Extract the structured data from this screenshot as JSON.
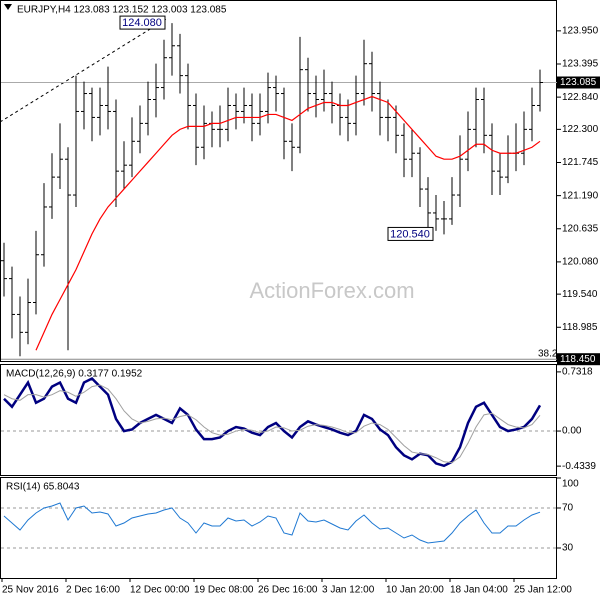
{
  "header": "EURJPY,H4 123.083 123.152 123.003 123.085",
  "watermark": "ActionForex.com",
  "fib_label": "38.2",
  "x_labels": [
    "25 Nov 2016",
    "2 Dec 16:00",
    "12 Dec 00:00",
    "19 Dec 08:00",
    "26 Dec 16:00",
    "3 Jan 12:00",
    "10 Jan 20:00",
    "18 Jan 04:00",
    "25 Jan 12:00"
  ],
  "chart_data": [
    {
      "type": "ohlc",
      "ylim": [
        118.42,
        124.45
      ],
      "yticks": [
        {
          "value": 123.95,
          "label": "123.950"
        },
        123.395,
        {
          "value": 122.84,
          "label": "122.840"
        },
        {
          "value": 122.3,
          "label": "122.300"
        },
        121.745,
        {
          "value": 121.19,
          "label": "121.190"
        },
        120.635,
        {
          "value": 120.08,
          "label": "120.080"
        },
        {
          "value": 119.54,
          "label": "119.540"
        },
        118.985
      ],
      "last_price": 123.085,
      "fib_level": {
        "value": 118.45,
        "label": "118.450"
      },
      "annotations": [
        {
          "value": 124.08,
          "label": "124.080"
        },
        {
          "value": 120.54,
          "label": "120.540"
        }
      ],
      "bar_color": "#000000",
      "open": [
        120.1,
        119.8,
        119.2,
        118.9,
        119.4,
        120.2,
        121.0,
        121.5,
        121.8,
        121.2,
        122.6,
        122.9,
        122.5,
        122.7,
        122.6,
        121.6,
        121.7,
        122.1,
        122.4,
        122.8,
        123.0,
        123.5,
        123.7,
        123.2,
        122.7,
        122.0,
        122.4,
        122.3,
        122.3,
        122.7,
        122.6,
        122.7,
        122.4,
        122.6,
        123.0,
        122.9,
        122.1,
        122.0,
        123.3,
        122.9,
        122.8,
        122.9,
        122.7,
        122.5,
        122.4,
        122.9,
        123.4,
        122.9,
        122.5,
        122.5,
        122.2,
        121.8,
        121.9,
        121.3,
        120.9,
        120.8,
        120.8,
        121.2,
        121.8,
        122.3,
        122.8,
        122.2,
        121.6,
        121.5,
        121.9,
        121.9,
        122.3,
        122.7
      ],
      "high": [
        120.4,
        120.0,
        119.5,
        119.8,
        120.6,
        121.4,
        121.9,
        122.4,
        122.0,
        123.2,
        123.1,
        123.0,
        123.0,
        123.35,
        122.8,
        122.1,
        122.5,
        122.7,
        123.1,
        123.4,
        123.8,
        124.08,
        123.9,
        123.4,
        122.9,
        122.7,
        122.6,
        122.7,
        123.0,
        122.9,
        123.0,
        122.9,
        122.9,
        123.25,
        123.2,
        123.0,
        122.4,
        123.85,
        123.5,
        123.2,
        123.3,
        123.1,
        122.9,
        122.8,
        123.2,
        123.8,
        123.6,
        123.1,
        122.8,
        122.7,
        122.4,
        122.3,
        122.0,
        121.5,
        121.2,
        121.1,
        121.5,
        122.2,
        122.6,
        123.0,
        123.0,
        122.4,
        121.9,
        122.2,
        122.4,
        122.6,
        123.0,
        123.3
      ],
      "low": [
        119.5,
        118.8,
        118.5,
        118.7,
        119.2,
        120.0,
        120.8,
        121.3,
        118.6,
        121.0,
        122.3,
        122.1,
        122.2,
        122.3,
        121.0,
        121.3,
        121.5,
        121.9,
        122.2,
        122.5,
        122.8,
        123.2,
        122.9,
        122.3,
        121.7,
        121.8,
        122.0,
        122.0,
        122.1,
        122.3,
        122.4,
        122.1,
        122.2,
        122.4,
        122.6,
        121.8,
        121.6,
        121.9,
        122.6,
        122.5,
        122.6,
        122.4,
        122.2,
        122.1,
        122.2,
        122.7,
        122.6,
        122.2,
        122.1,
        121.9,
        121.5,
        121.5,
        121.0,
        120.6,
        120.6,
        120.54,
        120.7,
        121.0,
        121.6,
        122.0,
        121.9,
        121.2,
        121.2,
        121.4,
        121.6,
        121.7,
        122.1,
        122.6
      ],
      "close": [
        119.8,
        119.2,
        118.9,
        119.4,
        120.2,
        121.0,
        121.5,
        121.8,
        121.2,
        122.6,
        122.9,
        122.5,
        122.7,
        122.6,
        121.6,
        121.7,
        122.1,
        122.4,
        122.8,
        123.0,
        123.5,
        123.7,
        123.2,
        122.7,
        122.0,
        122.4,
        122.3,
        122.3,
        122.7,
        122.6,
        122.7,
        122.4,
        122.6,
        123.0,
        122.9,
        122.1,
        122.0,
        123.3,
        122.9,
        122.8,
        122.9,
        122.7,
        122.5,
        122.4,
        122.9,
        123.4,
        122.9,
        122.5,
        122.5,
        122.2,
        121.8,
        121.9,
        121.3,
        120.9,
        120.8,
        120.8,
        121.2,
        121.8,
        122.3,
        122.8,
        122.2,
        121.6,
        121.5,
        121.9,
        121.9,
        122.3,
        122.7,
        123.085
      ],
      "series": [
        {
          "color": "#ff0000",
          "values": [
            null,
            null,
            null,
            null,
            118.6,
            118.9,
            119.2,
            119.45,
            119.7,
            119.95,
            120.25,
            120.55,
            120.8,
            121.0,
            121.15,
            121.3,
            121.45,
            121.6,
            121.75,
            121.9,
            122.05,
            122.2,
            122.3,
            122.35,
            122.35,
            122.35,
            122.4,
            122.4,
            122.45,
            122.5,
            122.5,
            122.5,
            122.5,
            122.55,
            122.55,
            122.5,
            122.45,
            122.55,
            122.65,
            122.7,
            122.75,
            122.75,
            122.7,
            122.7,
            122.75,
            122.8,
            122.85,
            122.8,
            122.75,
            122.6,
            122.45,
            122.3,
            122.15,
            122.0,
            121.85,
            121.8,
            121.8,
            121.85,
            121.95,
            122.05,
            122.05,
            121.95,
            121.9,
            121.9,
            121.9,
            121.95,
            122.0,
            122.1
          ]
        }
      ]
    },
    {
      "type": "line",
      "title": "MACD(12,26,9) 0.3177 0.1952",
      "ylim": [
        -0.556,
        0.817
      ],
      "yticks": [
        0.7318,
        {
          "value": 0,
          "label": "0.00"
        },
        -0.4339
      ],
      "series": [
        {
          "color": "#000080",
          "width": 2.5,
          "values": [
            0.4,
            0.3,
            0.45,
            0.6,
            0.35,
            0.4,
            0.55,
            0.6,
            0.4,
            0.35,
            0.6,
            0.65,
            0.55,
            0.45,
            0.15,
            0.0,
            0.02,
            0.1,
            0.15,
            0.2,
            0.15,
            0.1,
            0.28,
            0.2,
            0.02,
            -0.1,
            -0.1,
            -0.08,
            0.0,
            0.05,
            0.03,
            -0.02,
            -0.05,
            0.05,
            0.1,
            0.0,
            -0.08,
            0.05,
            0.12,
            0.08,
            0.05,
            0.02,
            -0.02,
            -0.05,
            0.0,
            0.2,
            0.15,
            0.02,
            -0.05,
            -0.2,
            -0.3,
            -0.35,
            -0.28,
            -0.3,
            -0.4,
            -0.43,
            -0.38,
            -0.2,
            0.1,
            0.3,
            0.35,
            0.2,
            0.05,
            0.0,
            0.02,
            0.05,
            0.15,
            0.3177
          ]
        },
        {
          "color": "#a0a0a0",
          "width": 1,
          "values": [
            0.45,
            0.4,
            0.38,
            0.45,
            0.45,
            0.42,
            0.45,
            0.5,
            0.48,
            0.43,
            0.48,
            0.55,
            0.57,
            0.52,
            0.4,
            0.25,
            0.15,
            0.1,
            0.12,
            0.15,
            0.16,
            0.14,
            0.18,
            0.2,
            0.14,
            0.05,
            -0.02,
            -0.05,
            -0.04,
            0.0,
            0.02,
            0.01,
            -0.02,
            0.0,
            0.05,
            0.04,
            0.0,
            0.01,
            0.06,
            0.08,
            0.07,
            0.05,
            0.02,
            -0.02,
            -0.02,
            0.06,
            0.1,
            0.08,
            0.02,
            -0.08,
            -0.18,
            -0.26,
            -0.28,
            -0.29,
            -0.33,
            -0.38,
            -0.39,
            -0.32,
            -0.15,
            0.05,
            0.2,
            0.22,
            0.15,
            0.08,
            0.05,
            0.04,
            0.08,
            0.1952
          ]
        }
      ]
    },
    {
      "type": "line",
      "title": "RSI(14) 65.8043",
      "ylim": [
        0,
        100
      ],
      "yticks": [
        100,
        70,
        30
      ],
      "grid_levels": [
        70,
        30
      ],
      "series": [
        {
          "color": "#1e78d2",
          "width": 1,
          "values": [
            62,
            55,
            48,
            58,
            65,
            70,
            72,
            75,
            58,
            70,
            72,
            65,
            66,
            64,
            52,
            55,
            60,
            62,
            64,
            65,
            68,
            70,
            60,
            55,
            45,
            55,
            52,
            52,
            60,
            57,
            58,
            52,
            56,
            62,
            60,
            45,
            43,
            65,
            57,
            56,
            58,
            54,
            50,
            48,
            57,
            63,
            55,
            49,
            50,
            45,
            40,
            43,
            38,
            35,
            36,
            37,
            45,
            55,
            62,
            68,
            55,
            45,
            45,
            52,
            52,
            58,
            63,
            65.8043
          ]
        }
      ]
    }
  ]
}
